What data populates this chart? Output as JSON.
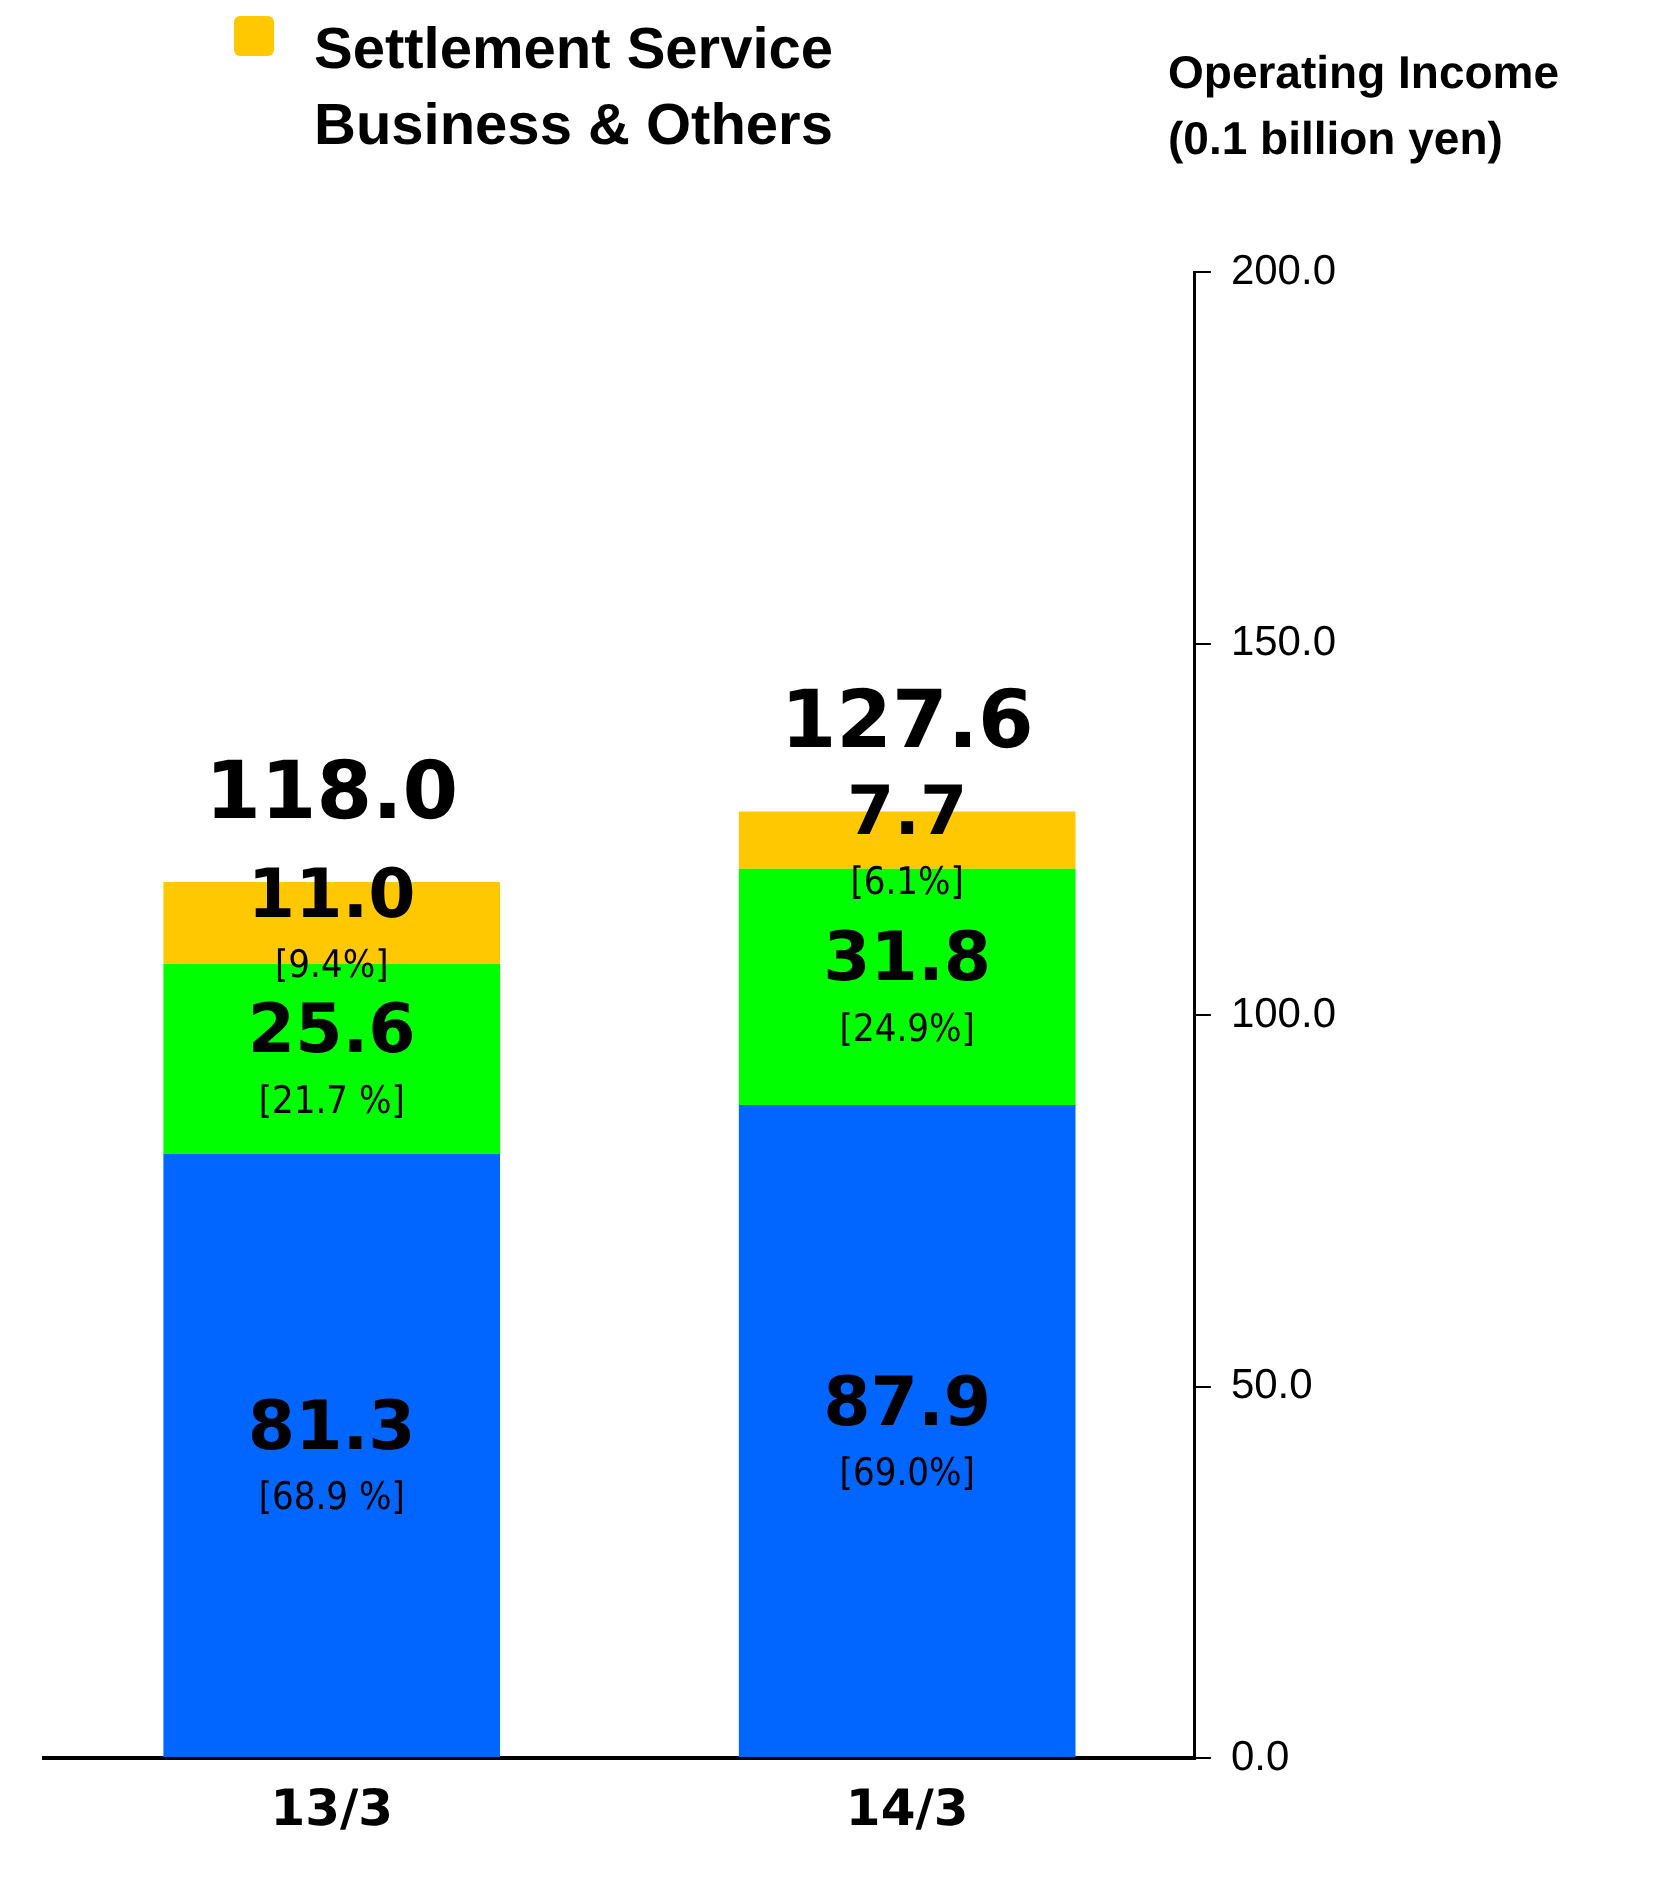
{
  "chart_data": {
    "type": "bar",
    "stacked": true,
    "ylabel": "Operating Income (0.1 billion yen)",
    "categories": [
      "13/3",
      "14/3"
    ],
    "series": [
      {
        "color": "#0066ff",
        "values": [
          81.3,
          87.9
        ],
        "value_labels": [
          "81.3\n[68.9 %]",
          "87.9\n[69.0%]"
        ]
      },
      {
        "color": "#00ff00",
        "values": [
          25.6,
          31.8
        ],
        "value_labels": [
          "25.6\n[21.7 %]",
          "31.8\n[24.9%]"
        ]
      },
      {
        "name": "Settlement Service Business & Others",
        "color": "#ffc800",
        "values": [
          11.0,
          7.7
        ],
        "value_labels": [
          "11.0\n[9.4%]",
          "7.7\n[6.1%]"
        ]
      }
    ],
    "totals": [
      "118.0",
      "127.6"
    ],
    "ylim": [
      0,
      200
    ],
    "yticks": [
      {
        "value": 0,
        "label": "0.0"
      },
      {
        "value": 50,
        "label": "50.0"
      },
      {
        "value": 100,
        "label": "100.0"
      },
      {
        "value": 150,
        "label": "150.0"
      },
      {
        "value": 200,
        "label": "200.0"
      }
    ],
    "grid": false,
    "legend": "top left"
  }
}
